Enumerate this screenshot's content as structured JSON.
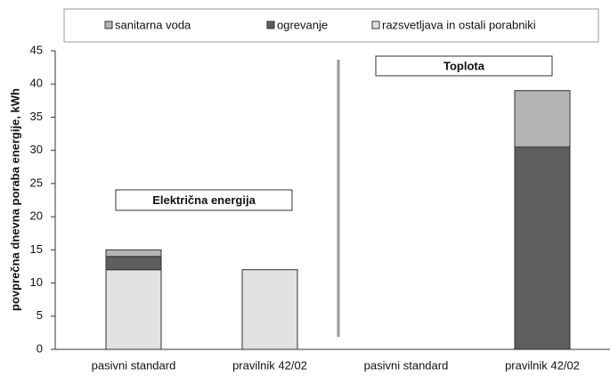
{
  "chart_data": {
    "type": "stacked_bar",
    "y_label": "povprečna dnevna poraba energije, kWh",
    "categories": [
      "pasivni standard",
      "pravilnik 42/02",
      "pasivni standard",
      "pravilnik 42/02"
    ],
    "series": [
      {
        "name": "sanitarna voda",
        "color": "#b4b4b4",
        "values": [
          1,
          0,
          0,
          8.5
        ]
      },
      {
        "name": "ogrevanje",
        "color": "#5e5e5e",
        "values": [
          2,
          0,
          0,
          30.5
        ]
      },
      {
        "name": "razsvetljava in ostali porabniki",
        "color": "#e2e2e2",
        "values": [
          12,
          12,
          0,
          0
        ]
      }
    ],
    "stack_order": [
      2,
      1,
      0
    ],
    "annotations": [
      "Električna energija",
      "Toplota"
    ],
    "ylim": [
      0,
      45
    ],
    "yticks": [
      0,
      5,
      10,
      15,
      20,
      25,
      30,
      35,
      40,
      45
    ],
    "grid": false
  }
}
